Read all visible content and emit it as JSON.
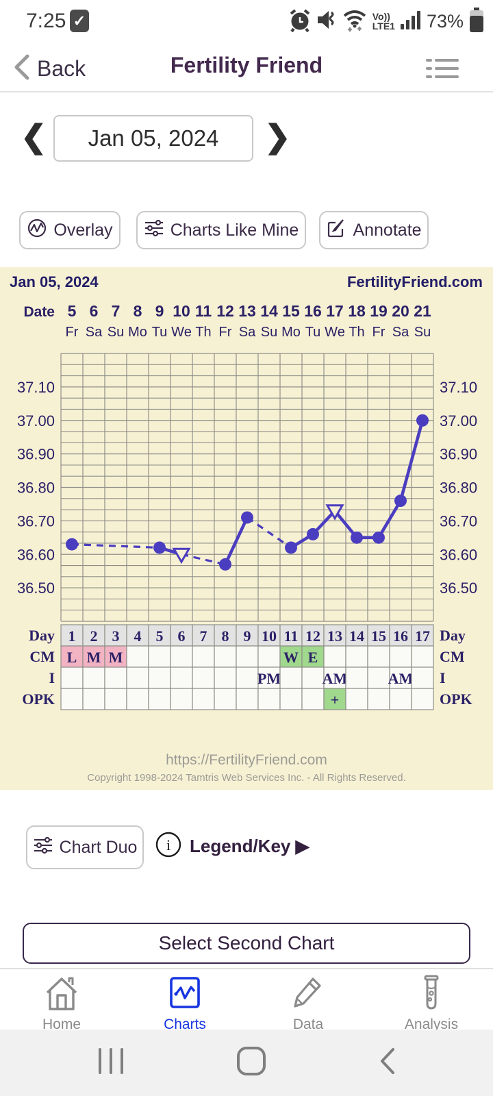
{
  "status_bar": {
    "time": "7:25",
    "volte_label": "Vo))",
    "lte_label": "LTE1",
    "battery": "73%"
  },
  "header": {
    "back_label": "Back",
    "title": "Fertility Friend"
  },
  "date_nav": {
    "current_date": "Jan 05, 2024"
  },
  "actions": {
    "overlay": "Overlay",
    "charts_like_mine": "Charts Like Mine",
    "annotate": "Annotate"
  },
  "colors": {
    "accent_purple": "#4b3dbf",
    "navy_text": "#2b2167",
    "chart_bg": "#f7f1d4",
    "grid_line": "#8f8f88",
    "day_header_bg": "#e3e3e3",
    "cell_bg": "#fafaf6",
    "pink": "#f2b4c3",
    "green": "#a0d88d",
    "charts_blue": "#1634e0",
    "footer_gray": "#9b9b94"
  },
  "chart_data": {
    "type": "line",
    "title": "Jan 05, 2024",
    "watermark": "FertilityFriend.com",
    "footer_url": "https://FertilityFriend.com",
    "footer_copyright": "Copyright 1998-2024 Tamtris Web Services Inc. - All Rights Reserved.",
    "x_axis": {
      "label": "Date",
      "dates": [
        5,
        6,
        7,
        8,
        9,
        10,
        11,
        12,
        13,
        14,
        15,
        16,
        17,
        18,
        19,
        20,
        21
      ],
      "weekdays": [
        "Fr",
        "Sa",
        "Su",
        "Mo",
        "Tu",
        "We",
        "Th",
        "Fr",
        "Sa",
        "Su",
        "Mo",
        "Tu",
        "We",
        "Th",
        "Fr",
        "Sa",
        "Su"
      ],
      "cycle_days": [
        1,
        2,
        3,
        4,
        5,
        6,
        7,
        8,
        9,
        10,
        11,
        12,
        13,
        14,
        15,
        16,
        17
      ]
    },
    "y_axis": {
      "unit": "C",
      "tick_labels": [
        "37.10",
        "37.00",
        "36.90",
        "36.80",
        "36.70",
        "36.60",
        "36.50"
      ],
      "min": 36.4,
      "max": 37.2,
      "minor_rows": 24,
      "grid": true
    },
    "series": [
      {
        "name": "BBT",
        "points": [
          {
            "day": 1,
            "temp": 36.63,
            "marker": "dot"
          },
          {
            "day": 5,
            "temp": 36.62,
            "marker": "dot"
          },
          {
            "day": 6,
            "temp": 36.6,
            "marker": "triangle"
          },
          {
            "day": 8,
            "temp": 36.57,
            "marker": "dot"
          },
          {
            "day": 9,
            "temp": 36.71,
            "marker": "dot"
          },
          {
            "day": 11,
            "temp": 36.62,
            "marker": "dot"
          },
          {
            "day": 12,
            "temp": 36.66,
            "marker": "dot"
          },
          {
            "day": 13,
            "temp": 36.73,
            "marker": "triangle"
          },
          {
            "day": 14,
            "temp": 36.65,
            "marker": "dot"
          },
          {
            "day": 15,
            "temp": 36.65,
            "marker": "dot"
          },
          {
            "day": 16,
            "temp": 36.76,
            "marker": "dot"
          },
          {
            "day": 17,
            "temp": 37.0,
            "marker": "dot"
          }
        ],
        "dashed_when_day_gap": true
      }
    ],
    "table": {
      "day_row_label": "Day",
      "rows": [
        {
          "label": "CM",
          "cells": {
            "1": {
              "t": "L",
              "bg": "pink"
            },
            "2": {
              "t": "M",
              "bg": "pink"
            },
            "3": {
              "t": "M",
              "bg": "pink"
            },
            "11": {
              "t": "W",
              "bg": "green"
            },
            "12": {
              "t": "E",
              "bg": "green"
            }
          }
        },
        {
          "label": "I",
          "cells": {
            "10": {
              "t": "PM"
            },
            "13": {
              "t": "AM"
            },
            "16": {
              "t": "AM"
            }
          }
        },
        {
          "label": "OPK",
          "cells": {
            "13": {
              "t": "+",
              "bg": "green"
            }
          }
        }
      ]
    }
  },
  "secondary": {
    "chart_duo": "Chart Duo",
    "legend_key": "Legend/Key ▶",
    "select_second_chart": "Select Second Chart"
  },
  "bottom_nav": {
    "home": "Home",
    "charts": "Charts",
    "data": "Data",
    "analysis": "Analysis",
    "active": "Charts"
  }
}
